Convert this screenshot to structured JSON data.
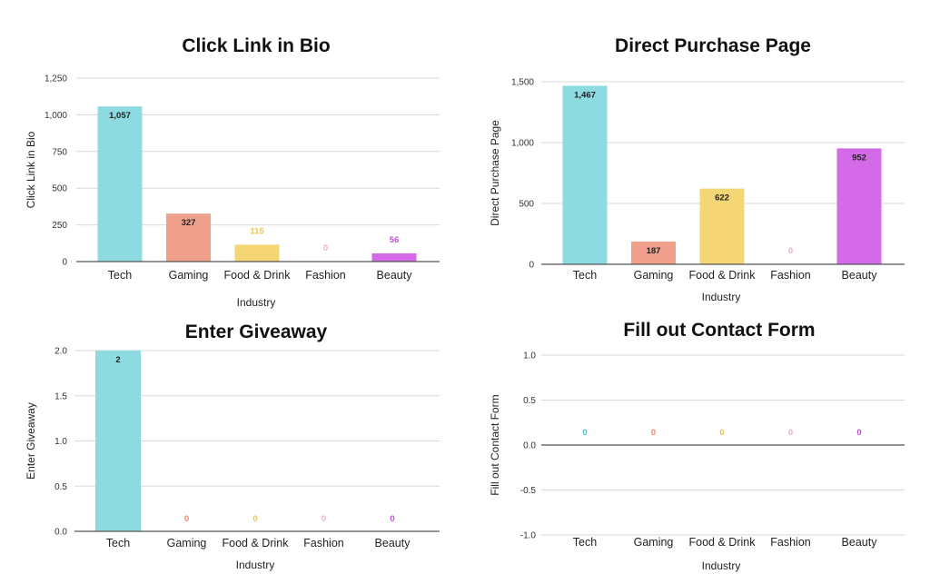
{
  "chart_data": [
    {
      "type": "bar",
      "title": "Click Link in Bio",
      "xlabel": "Industry",
      "ylabel": "Click Link in Bio",
      "categories": [
        "Tech",
        "Gaming",
        "Food & Drink",
        "Fashion",
        "Beauty"
      ],
      "values": [
        1057,
        327,
        115,
        0,
        56
      ],
      "value_labels": [
        "1,057",
        "327",
        "115",
        "0",
        "56"
      ],
      "ylim": [
        0,
        1250
      ],
      "yticks": [
        0,
        250,
        500,
        750,
        1000,
        1250
      ],
      "ytick_labels": [
        "0",
        "250",
        "500",
        "750",
        "1,000",
        "1,250"
      ],
      "grid": true
    },
    {
      "type": "bar",
      "title": "Direct Purchase Page",
      "xlabel": "Industry",
      "ylabel": "Direct Purchase Page",
      "categories": [
        "Tech",
        "Gaming",
        "Food & Drink",
        "Fashion",
        "Beauty"
      ],
      "values": [
        1467,
        187,
        622,
        0,
        952
      ],
      "value_labels": [
        "1,467",
        "187",
        "622",
        "0",
        "952"
      ],
      "ylim": [
        0,
        1500
      ],
      "yticks": [
        0,
        500,
        1000,
        1500
      ],
      "ytick_labels": [
        "0",
        "500",
        "1,000",
        "1,500"
      ],
      "grid": true
    },
    {
      "type": "bar",
      "title": "Enter Giveaway",
      "xlabel": "Industry",
      "ylabel": "Enter Giveaway",
      "categories": [
        "Tech",
        "Gaming",
        "Food & Drink",
        "Fashion",
        "Beauty"
      ],
      "values": [
        2,
        0,
        0,
        0,
        0
      ],
      "value_labels": [
        "2",
        "0",
        "0",
        "0",
        "0"
      ],
      "ylim": [
        0,
        2
      ],
      "yticks": [
        0,
        0.5,
        1,
        1.5,
        2
      ],
      "ytick_labels": [
        "0.0",
        "0.5",
        "1.0",
        "1.5",
        "2.0"
      ],
      "grid": true
    },
    {
      "type": "bar",
      "title": "Fill out Contact Form",
      "xlabel": "Industry",
      "ylabel": "Fill out Contact Form",
      "categories": [
        "Tech",
        "Gaming",
        "Food & Drink",
        "Fashion",
        "Beauty"
      ],
      "values": [
        0,
        0,
        0,
        0,
        0
      ],
      "value_labels": [
        "0",
        "0",
        "0",
        "0",
        "0"
      ],
      "ylim": [
        -1,
        1
      ],
      "yticks": [
        -1,
        -0.5,
        0,
        0.5,
        1
      ],
      "ytick_labels": [
        "-1.0",
        "-0.5",
        "0.0",
        "0.5",
        "1.0"
      ],
      "grid": true
    }
  ],
  "colors": {
    "Tech": "#8ddbe0",
    "Gaming": "#f0a08a",
    "Food & Drink": "#f4d675",
    "Fashion": "#f2b8c6",
    "Beauty": "#d56ae8"
  },
  "label_colors": {
    "Tech": "#4cc3cc",
    "Gaming": "#e58a73",
    "Food & Drink": "#ecc552",
    "Fashion": "#f0b0c0",
    "Beauty": "#c44fdc"
  }
}
